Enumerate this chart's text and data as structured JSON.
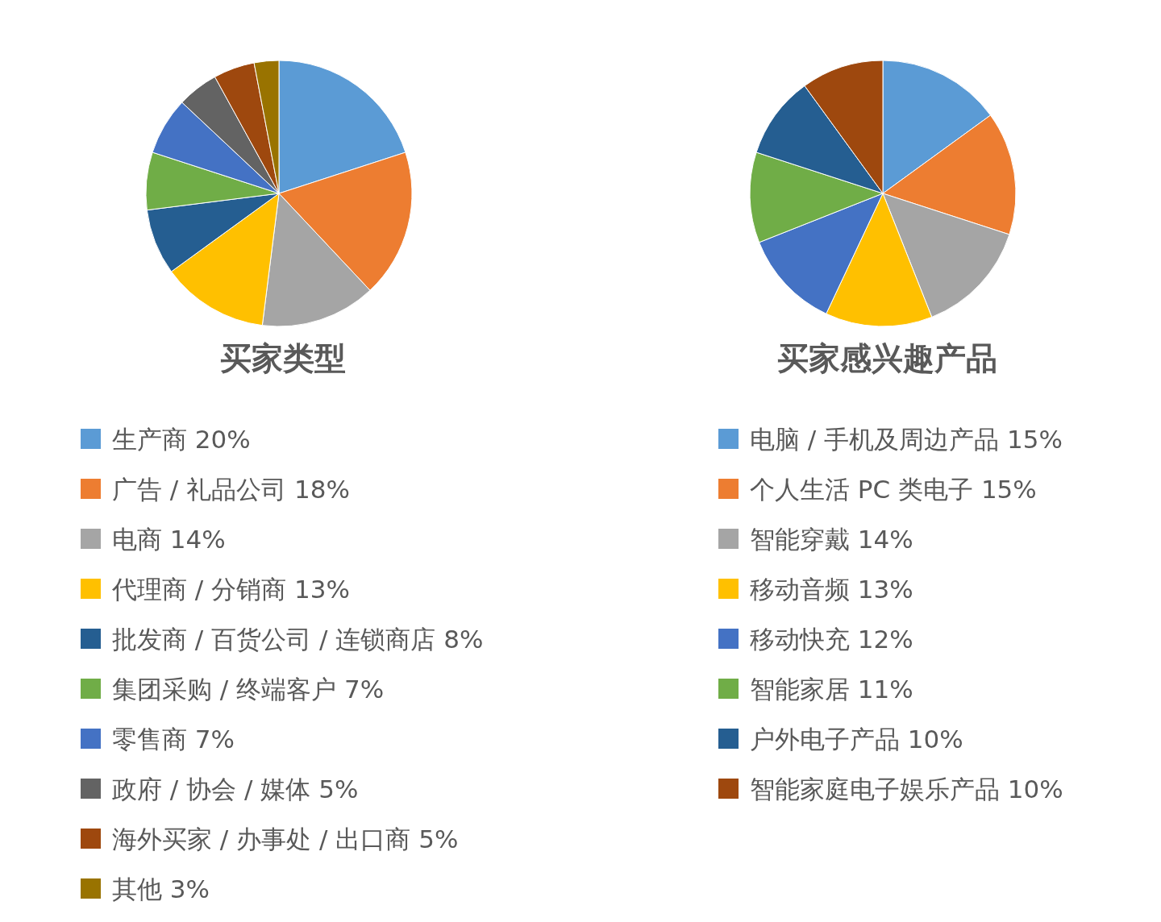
{
  "chart_data": [
    {
      "type": "pie",
      "title": "买家类型",
      "categories": [
        "生产商",
        "广告 / 礼品公司",
        "电商",
        "代理商 / 分销商",
        "批发商 / 百货公司 / 连锁商店",
        "集团采购 / 终端客户",
        "零售商",
        "政府 / 协会 / 媒体",
        "海外买家 / 办事处 / 出口商",
        "其他"
      ],
      "values": [
        20,
        18,
        14,
        13,
        8,
        7,
        7,
        5,
        5,
        3
      ],
      "value_labels": [
        "20%",
        "18%",
        "14%",
        "13%",
        "8%",
        "7%",
        "7%",
        "5%",
        "5%",
        "3%"
      ],
      "colors": [
        "#5b9bd5",
        "#ed7d31",
        "#a5a5a5",
        "#ffc000",
        "#255e91",
        "#70ad47",
        "#4472c4",
        "#636363",
        "#9e480e",
        "#997300"
      ],
      "legend": "bottom"
    },
    {
      "type": "pie",
      "title": "买家感兴趣产品",
      "categories": [
        "电脑 / 手机及周边产品",
        "个人生活 PC 类电子",
        "智能穿戴",
        "移动音频",
        "移动快充",
        "智能家居",
        "户外电子产品",
        "智能家庭电子娱乐产品"
      ],
      "values": [
        15,
        15,
        14,
        13,
        12,
        11,
        10,
        10
      ],
      "value_labels": [
        "15%",
        "15%",
        "14%",
        "13%",
        "12%",
        "11%",
        "10%",
        "10%"
      ],
      "colors": [
        "#5b9bd5",
        "#ed7d31",
        "#a5a5a5",
        "#ffc000",
        "#4472c4",
        "#70ad47",
        "#255e91",
        "#9e480e"
      ],
      "legend": "bottom"
    }
  ]
}
